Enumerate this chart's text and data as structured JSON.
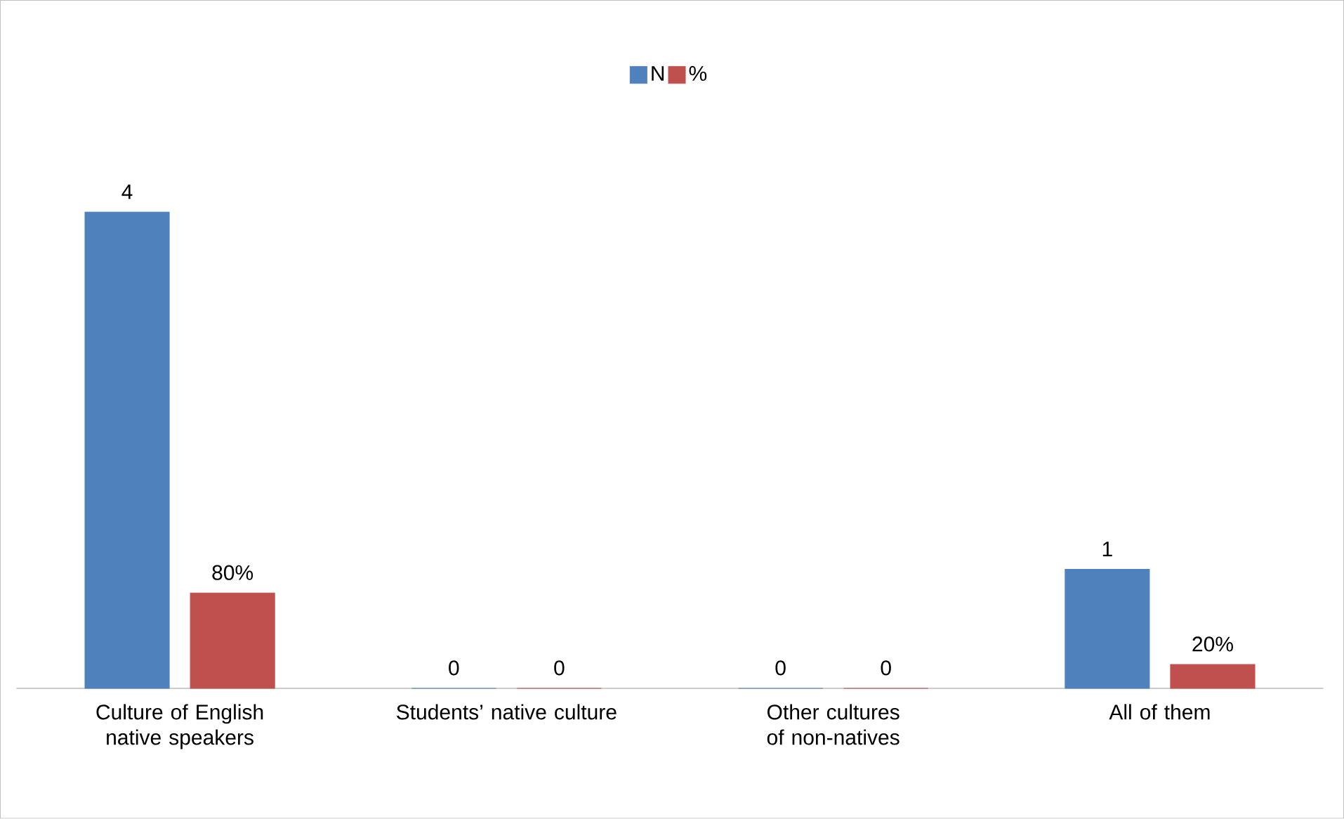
{
  "chart_data": {
    "type": "bar",
    "categories": [
      "Culture of English native speakers",
      "Students’ native culture",
      "Other cultures of non-natives",
      "All of them"
    ],
    "series": [
      {
        "name": "N",
        "color": "#4f81bd",
        "values": [
          4,
          0,
          0,
          1
        ],
        "value_labels": [
          "4",
          "0",
          "0",
          "1"
        ]
      },
      {
        "name": "%",
        "color": "#c0504d",
        "values": [
          0.8,
          0,
          0,
          0.2
        ],
        "value_labels": [
          "80%",
          "0",
          "0",
          "20%"
        ]
      }
    ],
    "legend": "top"
  }
}
